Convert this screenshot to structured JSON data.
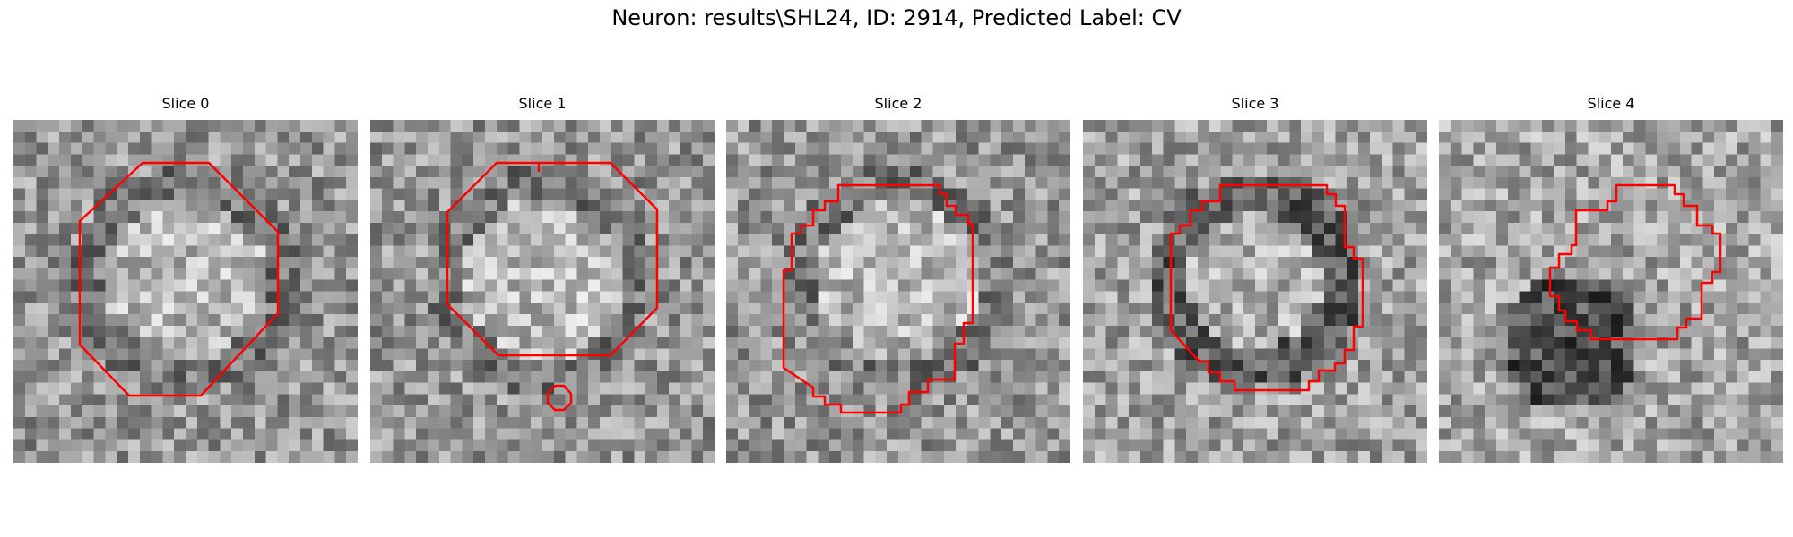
{
  "figure": {
    "title": "Neuron: results\\SHL24, ID: 2914, Predicted Label: CV",
    "contour_color": "#ff0000",
    "colormap": "gray"
  },
  "slices": [
    {
      "label": "Slice 0",
      "seed": 11,
      "profile": "bright-center"
    },
    {
      "label": "Slice 1",
      "seed": 23,
      "profile": "bright-center"
    },
    {
      "label": "Slice 2",
      "seed": 37,
      "profile": "bright-center"
    },
    {
      "label": "Slice 3",
      "seed": 51,
      "profile": "dark-ring"
    },
    {
      "label": "Slice 4",
      "seed": 67,
      "profile": "dark-blob"
    }
  ]
}
